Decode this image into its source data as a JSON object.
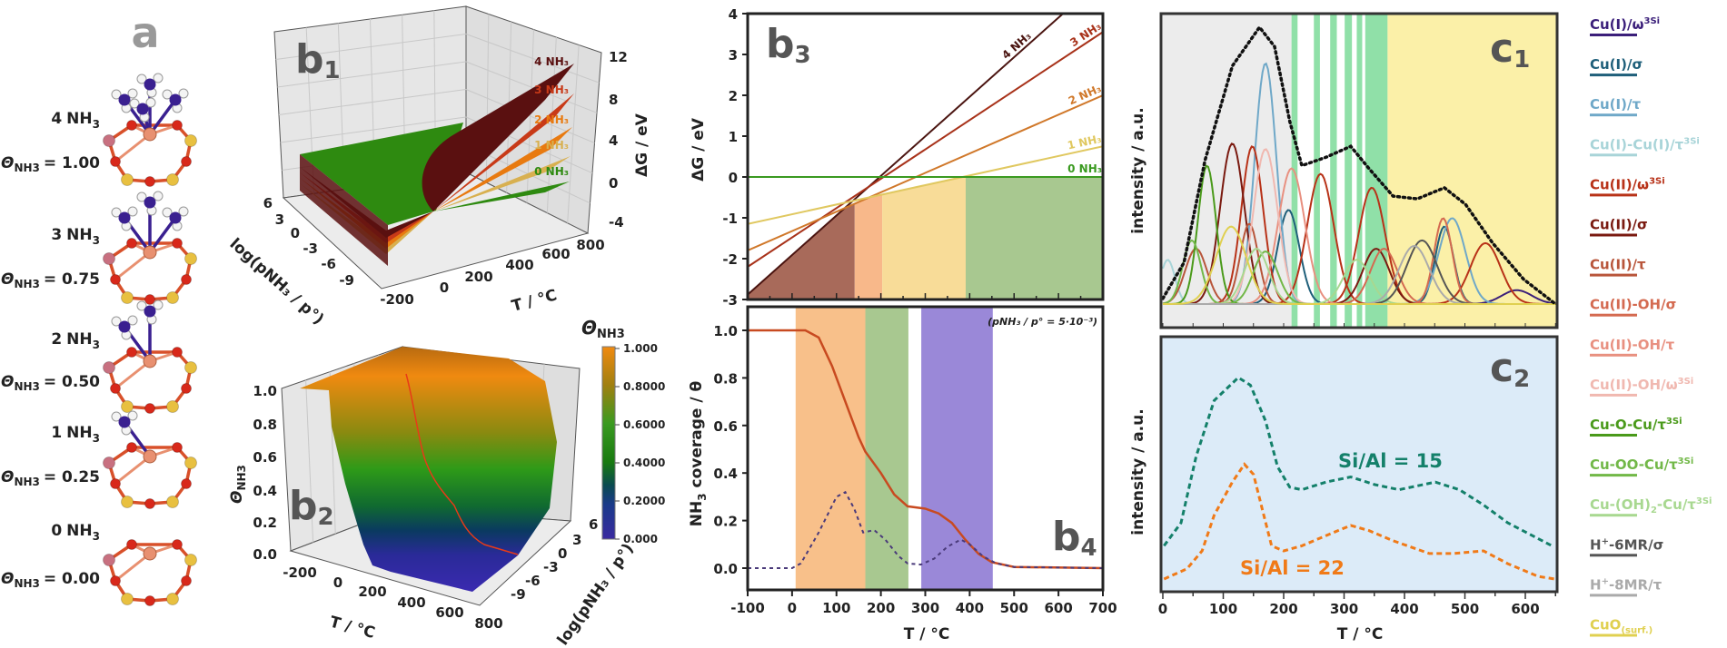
{
  "panel_a": {
    "label": "a",
    "nh3_text": "NH",
    "nh3_sub": "3",
    "theta_symbol": "Θ",
    "theta_sub": "NH3",
    "structures": [
      {
        "count": 4,
        "count_label": "4",
        "theta_value": "= 1.00"
      },
      {
        "count": 3,
        "count_label": "3",
        "theta_value": "= 0.75"
      },
      {
        "count": 2,
        "count_label": "2",
        "theta_value": "= 0.50"
      },
      {
        "count": 1,
        "count_label": "1",
        "theta_value": "= 0.25"
      },
      {
        "count": 0,
        "count_label": "0",
        "theta_value": "= 0.00"
      }
    ]
  },
  "chart_data": [
    {
      "id": "b1",
      "type": "surface3d",
      "panel_label": "b",
      "panel_sub": "1",
      "zlabel": "ΔG / eV",
      "xlabel": "T / °C",
      "ylabel": "log(pNH₃ / p°)",
      "z_ticks": [
        "12",
        "8",
        "4",
        "0",
        "-4"
      ],
      "x_ticks": [
        "-200",
        "0",
        "200",
        "400",
        "600",
        "800"
      ],
      "y_ticks": [
        "6",
        "3",
        "0",
        "-3",
        "-6",
        "-9"
      ],
      "series": [
        {
          "name": "4 NH₃",
          "color": "#5a1010"
        },
        {
          "name": "3 NH₃",
          "color": "#c83a18"
        },
        {
          "name": "2 NH₃",
          "color": "#e87a10"
        },
        {
          "name": "1 NH₃",
          "color": "#d8b050"
        },
        {
          "name": "0 NH₃",
          "color": "#2e8a10"
        }
      ],
      "grid": true
    },
    {
      "id": "b2",
      "type": "surface3d",
      "panel_label": "b",
      "panel_sub": "2",
      "zlabel_symbol": "Θ",
      "zlabel_sub": "NH3",
      "xlabel": "T / °C",
      "ylabel": "log(pNH₃ / p°)",
      "z_ticks": [
        "1.0",
        "0.8",
        "0.6",
        "0.4",
        "0.2",
        "0.0"
      ],
      "x_ticks": [
        "-200",
        "0",
        "200",
        "400",
        "600",
        "800"
      ],
      "y_ticks": [
        "6",
        "3",
        "0",
        "-3",
        "-6",
        "-9"
      ],
      "colorbar": {
        "title_symbol": "Θ",
        "title_sub": "NH3",
        "ticks": [
          "1.000",
          "0.8000",
          "0.6000",
          "0.4000",
          "0.2000",
          "0.000"
        ],
        "colors": [
          "#f08a10",
          "#a08010",
          "#3a9a20",
          "#187a10",
          "#0a4a50",
          "#1a3a8a",
          "#3a2aa0"
        ]
      },
      "grid": true
    },
    {
      "id": "b3",
      "type": "line",
      "panel_label": "b",
      "panel_sub": "3",
      "ylabel": "ΔG / eV",
      "xlim": [
        -100,
        700
      ],
      "ylim": [
        -3,
        4
      ],
      "y_ticks": [
        4,
        3,
        2,
        1,
        0,
        -1,
        -2,
        -3
      ],
      "series": [
        {
          "name": "4 NH₃",
          "color": "#4a1410",
          "T": [
            -100,
            700
          ],
          "dG": [
            -2.88,
            4.87
          ]
        },
        {
          "name": "3 NH₃",
          "color": "#a8321a",
          "T": [
            -100,
            700
          ],
          "dG": [
            -2.2,
            3.55
          ]
        },
        {
          "name": "2 NH₃",
          "color": "#d0782a",
          "T": [
            -100,
            700
          ],
          "dG": [
            -1.8,
            2.0
          ]
        },
        {
          "name": "1 NH₃",
          "color": "#e0c860",
          "T": [
            -100,
            700
          ],
          "dG": [
            -1.15,
            0.75
          ]
        },
        {
          "name": "0 NH₃",
          "color": "#3a9a20",
          "T": [
            -100,
            700
          ],
          "dG": [
            0,
            0
          ]
        }
      ],
      "stability_regions": [
        {
          "from": -100,
          "to": 141,
          "color": "#a86a5a"
        },
        {
          "from": 141,
          "to": 203,
          "color": "#f8b88a"
        },
        {
          "from": 203,
          "to": 391,
          "color": "#f8dc98"
        },
        {
          "from": 391,
          "to": 700,
          "color": "#a8c890"
        }
      ]
    },
    {
      "id": "b4",
      "type": "line",
      "panel_label": "b",
      "panel_sub": "4",
      "ylabel_pre": "NH",
      "ylabel_sub": "3",
      "ylabel_post": " coverage / θ",
      "xlabel": "T / °C",
      "annotation": "(pNH₃ / p° = 5·10⁻³)",
      "xlim": [
        -100,
        700
      ],
      "ylim": [
        -0.09,
        1.1
      ],
      "x_ticks": [
        -100,
        0,
        100,
        200,
        300,
        400,
        500,
        600,
        700
      ],
      "y_ticks": [
        "1.0",
        "0.8",
        "0.6",
        "0.4",
        "0.2",
        "0.0"
      ],
      "bands": [
        {
          "from": 8,
          "to": 165,
          "color": "#f8c08a"
        },
        {
          "from": 165,
          "to": 262,
          "color": "#a8c890"
        },
        {
          "from": 291,
          "to": 452,
          "color": "#9a88d8"
        }
      ],
      "coverage": {
        "color": "#c84a20",
        "points": [
          [
            -100,
            1
          ],
          [
            30,
            1
          ],
          [
            60,
            0.97
          ],
          [
            90,
            0.85
          ],
          [
            120,
            0.7
          ],
          [
            150,
            0.55
          ],
          [
            165,
            0.49
          ],
          [
            200,
            0.4
          ],
          [
            230,
            0.31
          ],
          [
            260,
            0.26
          ],
          [
            300,
            0.25
          ],
          [
            330,
            0.23
          ],
          [
            360,
            0.19
          ],
          [
            390,
            0.12
          ],
          [
            420,
            0.06
          ],
          [
            450,
            0.025
          ],
          [
            500,
            0.005
          ],
          [
            700,
            0
          ]
        ]
      },
      "derivative": {
        "color": "#4a3a7a",
        "points": [
          [
            -100,
            0
          ],
          [
            0,
            0
          ],
          [
            20,
            0.02
          ],
          [
            60,
            0.15
          ],
          [
            100,
            0.3
          ],
          [
            120,
            0.32
          ],
          [
            140,
            0.25
          ],
          [
            160,
            0.15
          ],
          [
            185,
            0.16
          ],
          [
            210,
            0.12
          ],
          [
            240,
            0.05
          ],
          [
            260,
            0.02
          ],
          [
            290,
            0.015
          ],
          [
            320,
            0.04
          ],
          [
            350,
            0.09
          ],
          [
            380,
            0.12
          ],
          [
            400,
            0.1
          ],
          [
            430,
            0.05
          ],
          [
            460,
            0.02
          ],
          [
            500,
            0.005
          ],
          [
            700,
            0
          ]
        ]
      }
    },
    {
      "id": "c1",
      "type": "line",
      "panel_label": "c",
      "panel_sub": "1",
      "ylabel": "intensity / a.u.",
      "xlim": [
        0,
        653
      ],
      "bands": [
        {
          "from": 0,
          "to": 213,
          "color": "#ececec"
        },
        {
          "from": 213,
          "to": 223,
          "color": "#90e0a8"
        },
        {
          "from": 250,
          "to": 260,
          "color": "#90e0a8"
        },
        {
          "from": 277,
          "to": 288,
          "color": "#90e0a8"
        },
        {
          "from": 301,
          "to": 313,
          "color": "#90e0a8"
        },
        {
          "from": 321,
          "to": 330,
          "color": "#90e0a8"
        },
        {
          "from": 335,
          "to": 372,
          "color": "#90e0a8"
        },
        {
          "from": 372,
          "to": 653,
          "color": "#fbf0a8"
        }
      ],
      "envelope": {
        "color": "#111",
        "points": [
          [
            0,
            0.02
          ],
          [
            35,
            0.15
          ],
          [
            70,
            0.52
          ],
          [
            115,
            0.86
          ],
          [
            160,
            1.0
          ],
          [
            185,
            0.93
          ],
          [
            210,
            0.66
          ],
          [
            230,
            0.5
          ],
          [
            270,
            0.53
          ],
          [
            311,
            0.57
          ],
          [
            341,
            0.49
          ],
          [
            381,
            0.39
          ],
          [
            421,
            0.38
          ],
          [
            466,
            0.42
          ],
          [
            501,
            0.36
          ],
          [
            546,
            0.22
          ],
          [
            597,
            0.09
          ],
          [
            647,
            0.005
          ],
          [
            653,
            0
          ]
        ]
      },
      "peaks": [
        {
          "species": 0,
          "center": 586,
          "height": 0.05,
          "width": 25
        },
        {
          "species": 1,
          "center": 208,
          "height": 0.34,
          "width": 18
        },
        {
          "species": 1,
          "center": 466,
          "height": 0.28,
          "width": 15
        },
        {
          "species": 2,
          "center": 170,
          "height": 0.87,
          "width": 18
        },
        {
          "species": 2,
          "center": 479,
          "height": 0.31,
          "width": 22
        },
        {
          "species": 3,
          "center": 8,
          "height": 0.16,
          "width": 12
        },
        {
          "species": 4,
          "center": 148,
          "height": 0.57,
          "width": 18
        },
        {
          "species": 4,
          "center": 261,
          "height": 0.47,
          "width": 22
        },
        {
          "species": 4,
          "center": 346,
          "height": 0.42,
          "width": 22
        },
        {
          "species": 4,
          "center": 534,
          "height": 0.22,
          "width": 25
        },
        {
          "species": 5,
          "center": 115,
          "height": 0.58,
          "width": 20
        },
        {
          "species": 5,
          "center": 353,
          "height": 0.2,
          "width": 22
        },
        {
          "species": 6,
          "center": 55,
          "height": 0.2,
          "width": 18
        },
        {
          "species": 6,
          "center": 143,
          "height": 0.29,
          "width": 15
        },
        {
          "species": 7,
          "center": 366,
          "height": 0.2,
          "width": 22
        },
        {
          "species": 7,
          "center": 464,
          "height": 0.31,
          "width": 15
        },
        {
          "species": 8,
          "center": 213,
          "height": 0.49,
          "width": 22
        },
        {
          "species": 9,
          "center": 170,
          "height": 0.56,
          "width": 20
        },
        {
          "species": 10,
          "center": 73,
          "height": 0.5,
          "width": 15
        },
        {
          "species": 11,
          "center": 48,
          "height": 0.23,
          "width": 15
        },
        {
          "species": 11,
          "center": 170,
          "height": 0.19,
          "width": 20
        },
        {
          "species": 12,
          "center": 155,
          "height": 0.2,
          "width": 20
        },
        {
          "species": 12,
          "center": 321,
          "height": 0.16,
          "width": 22
        },
        {
          "species": 13,
          "center": 429,
          "height": 0.23,
          "width": 25
        },
        {
          "species": 14,
          "center": 416,
          "height": 0.21,
          "width": 25
        },
        {
          "species": 15,
          "center": 113,
          "height": 0.28,
          "width": 25
        }
      ]
    },
    {
      "id": "c2",
      "type": "line",
      "panel_label": "c",
      "panel_sub": "2",
      "ylabel": "intensity / a.u.",
      "xlabel": "T / °C",
      "xlim": [
        0,
        653
      ],
      "x_ticks": [
        0,
        100,
        200,
        300,
        400,
        500,
        600
      ],
      "background": "#dcebf8",
      "series": [
        {
          "name": "Si/Al = 15",
          "color": "#14806a",
          "points": [
            [
              2,
              0.18
            ],
            [
              30,
              0.27
            ],
            [
              55,
              0.53
            ],
            [
              85,
              0.75
            ],
            [
              125,
              0.84
            ],
            [
              145,
              0.81
            ],
            [
              170,
              0.67
            ],
            [
              190,
              0.49
            ],
            [
              210,
              0.41
            ],
            [
              230,
              0.4
            ],
            [
              270,
              0.43
            ],
            [
              311,
              0.45
            ],
            [
              351,
              0.42
            ],
            [
              391,
              0.4
            ],
            [
              451,
              0.43
            ],
            [
              491,
              0.4
            ],
            [
              531,
              0.34
            ],
            [
              571,
              0.27
            ],
            [
              644,
              0.18
            ]
          ]
        },
        {
          "name": "Si/Al = 22",
          "color": "#f07a18",
          "points": [
            [
              2,
              0.05
            ],
            [
              40,
              0.09
            ],
            [
              65,
              0.16
            ],
            [
              85,
              0.3
            ],
            [
              115,
              0.43
            ],
            [
              135,
              0.5
            ],
            [
              150,
              0.46
            ],
            [
              165,
              0.32
            ],
            [
              180,
              0.18
            ],
            [
              200,
              0.16
            ],
            [
              230,
              0.18
            ],
            [
              270,
              0.22
            ],
            [
              311,
              0.26
            ],
            [
              341,
              0.24
            ],
            [
              381,
              0.2
            ],
            [
              441,
              0.15
            ],
            [
              481,
              0.15
            ],
            [
              531,
              0.16
            ],
            [
              571,
              0.11
            ],
            [
              621,
              0.06
            ],
            [
              649,
              0.05
            ]
          ]
        }
      ]
    }
  ],
  "legend": [
    {
      "color": "#3b1f7a",
      "parts": [
        {
          "t": "Cu(I)/ω"
        },
        {
          "sup": "3Si"
        }
      ]
    },
    {
      "color": "#1f5f7a",
      "parts": [
        {
          "t": "Cu(I)/σ"
        }
      ]
    },
    {
      "color": "#6fa8c8",
      "parts": [
        {
          "t": "Cu(I)/τ"
        }
      ]
    },
    {
      "color": "#a8d4d8",
      "parts": [
        {
          "t": "Cu(I)-Cu(I)/τ"
        },
        {
          "sup": "3Si"
        }
      ]
    },
    {
      "color": "#b83218",
      "parts": [
        {
          "t": "Cu(II)/ω"
        },
        {
          "sup": "3Si"
        }
      ]
    },
    {
      "color": "#7a1a10",
      "parts": [
        {
          "t": "Cu(II)/σ"
        }
      ]
    },
    {
      "color": "#b8553a",
      "parts": [
        {
          "t": "Cu(II)/τ"
        }
      ]
    },
    {
      "color": "#d46a50",
      "parts": [
        {
          "t": "Cu(II)-OH/σ"
        }
      ]
    },
    {
      "color": "#e89080",
      "parts": [
        {
          "t": "Cu(II)-OH/τ"
        }
      ]
    },
    {
      "color": "#f0b8b0",
      "parts": [
        {
          "t": "Cu(II)-OH/ω"
        },
        {
          "sup": "3Si"
        }
      ]
    },
    {
      "color": "#4a9a1a",
      "parts": [
        {
          "t": "Cu-O-Cu/τ"
        },
        {
          "sup": "3Si"
        }
      ]
    },
    {
      "color": "#72b848",
      "parts": [
        {
          "t": "Cu-OO-Cu/τ"
        },
        {
          "sup": "3Si"
        }
      ]
    },
    {
      "color": "#a8d890",
      "parts": [
        {
          "t": "Cu-(OH)"
        },
        {
          "sub": "2"
        },
        {
          "t": "-Cu/τ"
        },
        {
          "sup": "3Si"
        }
      ]
    },
    {
      "color": "#555555",
      "parts": [
        {
          "t": "H"
        },
        {
          "sup": "+"
        },
        {
          "t": "-6MR/σ"
        }
      ]
    },
    {
      "color": "#aaaaaa",
      "parts": [
        {
          "t": "H"
        },
        {
          "sup": "+"
        },
        {
          "t": "-8MR/τ"
        }
      ]
    },
    {
      "color": "#e0d050",
      "parts": [
        {
          "t": "CuO"
        },
        {
          "sub": "(surf.)"
        }
      ]
    }
  ]
}
